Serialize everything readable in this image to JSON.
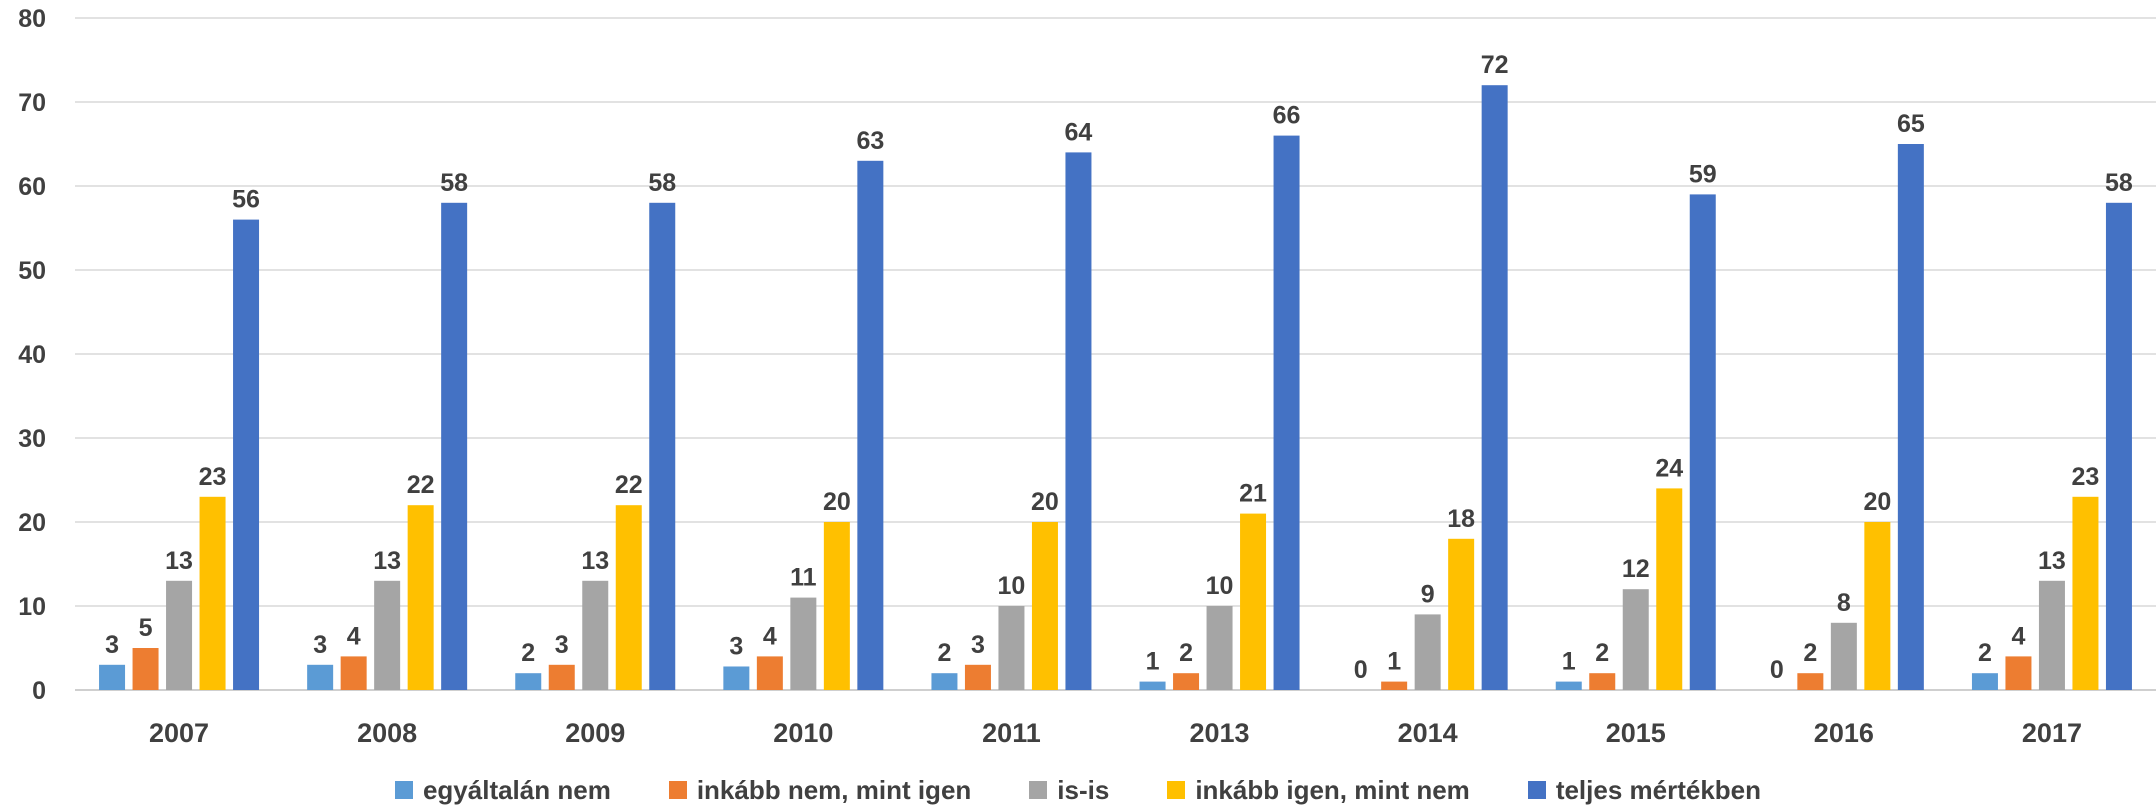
{
  "chart_data": {
    "type": "bar",
    "title": "",
    "xlabel": "",
    "ylabel": "",
    "ylim": [
      0,
      80
    ],
    "yticks": [
      0,
      10,
      20,
      30,
      40,
      50,
      60,
      70,
      80
    ],
    "grid": true,
    "legend_position": "bottom",
    "categories": [
      "2007",
      "2008",
      "2009",
      "2010",
      "2011",
      "2013",
      "2014",
      "2015",
      "2016",
      "2017"
    ],
    "series": [
      {
        "name": "egyáltalán nem",
        "color": "#5B9BD5",
        "values": [
          3,
          3,
          2,
          2.8,
          2,
          1,
          0,
          1,
          0,
          2
        ],
        "labels": [
          "3",
          "3",
          "2",
          "3",
          "2",
          "1",
          "0",
          "1",
          "0",
          "2"
        ]
      },
      {
        "name": "inkább nem, mint igen",
        "color": "#ED7D31",
        "values": [
          5,
          4,
          3,
          4,
          3,
          2,
          1,
          2,
          2,
          4
        ],
        "labels": [
          "5",
          "4",
          "3",
          "4",
          "3",
          "2",
          "1",
          "2",
          "2",
          "4"
        ]
      },
      {
        "name": "is-is",
        "color": "#A5A5A5",
        "values": [
          13,
          13,
          13,
          11,
          10,
          10,
          9,
          12,
          8,
          13
        ],
        "labels": [
          "13",
          "13",
          "13",
          "11",
          "10",
          "10",
          "9",
          "12",
          "8",
          "13"
        ]
      },
      {
        "name": "inkább igen, mint nem",
        "color": "#FFC000",
        "values": [
          23,
          22,
          22,
          20,
          20,
          21,
          18,
          24,
          20,
          23
        ],
        "labels": [
          "23",
          "22",
          "22",
          "20",
          "20",
          "21",
          "18",
          "24",
          "20",
          "23"
        ]
      },
      {
        "name": "teljes mértékben",
        "color": "#4472C4",
        "values": [
          56,
          58,
          58,
          63,
          64,
          66,
          72,
          59,
          65,
          58
        ],
        "labels": [
          "56",
          "58",
          "58",
          "63",
          "64",
          "66",
          "72",
          "59",
          "65",
          "58"
        ]
      }
    ]
  }
}
